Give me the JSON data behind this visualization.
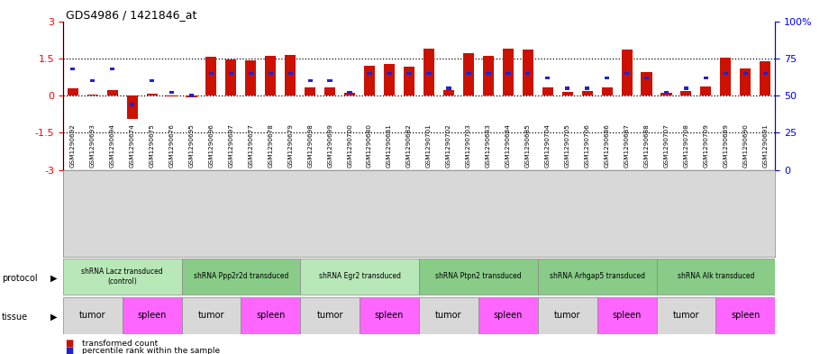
{
  "title": "GDS4986 / 1421846_at",
  "samples": [
    "GSM1290692",
    "GSM1290693",
    "GSM1290694",
    "GSM1290674",
    "GSM1290675",
    "GSM1290676",
    "GSM1290695",
    "GSM1290696",
    "GSM1290697",
    "GSM1290677",
    "GSM1290678",
    "GSM1290679",
    "GSM1290698",
    "GSM1290699",
    "GSM1290700",
    "GSM1290680",
    "GSM1290681",
    "GSM1290682",
    "GSM1290701",
    "GSM1290702",
    "GSM1290703",
    "GSM1290683",
    "GSM1290684",
    "GSM1290685",
    "GSM1290704",
    "GSM1290705",
    "GSM1290706",
    "GSM1290686",
    "GSM1290687",
    "GSM1290688",
    "GSM1290707",
    "GSM1290708",
    "GSM1290709",
    "GSM1290689",
    "GSM1290690",
    "GSM1290691"
  ],
  "red_values": [
    0.28,
    0.04,
    0.22,
    -0.95,
    0.07,
    -0.04,
    -0.07,
    1.55,
    1.45,
    1.42,
    1.62,
    1.65,
    0.32,
    0.32,
    0.1,
    1.22,
    1.28,
    1.15,
    1.88,
    0.22,
    1.72,
    1.62,
    1.9,
    1.85,
    0.32,
    0.15,
    0.2,
    0.32,
    1.85,
    0.95,
    0.1,
    0.2,
    0.35,
    1.52,
    1.1,
    1.38
  ],
  "blue_values": [
    68,
    60,
    68,
    44,
    60,
    52,
    50,
    65,
    65,
    65,
    65,
    65,
    60,
    60,
    52,
    65,
    65,
    65,
    65,
    55,
    65,
    65,
    65,
    65,
    62,
    55,
    55,
    62,
    65,
    62,
    52,
    55,
    62,
    65,
    65,
    65
  ],
  "protocols": [
    {
      "label": "shRNA Lacz transduced\n(control)",
      "start": 0,
      "end": 6,
      "color": "#b8e8b8"
    },
    {
      "label": "shRNA Ppp2r2d transduced",
      "start": 6,
      "end": 12,
      "color": "#88cc88"
    },
    {
      "label": "shRNA Egr2 transduced",
      "start": 12,
      "end": 18,
      "color": "#b8e8b8"
    },
    {
      "label": "shRNA Ptpn2 transduced",
      "start": 18,
      "end": 24,
      "color": "#88cc88"
    },
    {
      "label": "shRNA Arhgap5 transduced",
      "start": 24,
      "end": 30,
      "color": "#88cc88"
    },
    {
      "label": "shRNA Alk transduced",
      "start": 30,
      "end": 36,
      "color": "#88cc88"
    }
  ],
  "tissues": [
    {
      "label": "tumor",
      "start": 0,
      "end": 3,
      "color": "#d8d8d8"
    },
    {
      "label": "spleen",
      "start": 3,
      "end": 6,
      "color": "#ff66ff"
    },
    {
      "label": "tumor",
      "start": 6,
      "end": 9,
      "color": "#d8d8d8"
    },
    {
      "label": "spleen",
      "start": 9,
      "end": 12,
      "color": "#ff66ff"
    },
    {
      "label": "tumor",
      "start": 12,
      "end": 15,
      "color": "#d8d8d8"
    },
    {
      "label": "spleen",
      "start": 15,
      "end": 18,
      "color": "#ff66ff"
    },
    {
      "label": "tumor",
      "start": 18,
      "end": 21,
      "color": "#d8d8d8"
    },
    {
      "label": "spleen",
      "start": 21,
      "end": 24,
      "color": "#ff66ff"
    },
    {
      "label": "tumor",
      "start": 24,
      "end": 27,
      "color": "#d8d8d8"
    },
    {
      "label": "spleen",
      "start": 27,
      "end": 30,
      "color": "#ff66ff"
    },
    {
      "label": "tumor",
      "start": 30,
      "end": 33,
      "color": "#d8d8d8"
    },
    {
      "label": "spleen",
      "start": 33,
      "end": 36,
      "color": "#ff66ff"
    }
  ],
  "ylim": [
    -3,
    3
  ],
  "yticks_left": [
    -3,
    -1.5,
    0,
    1.5,
    3
  ],
  "yticks_right": [
    0,
    25,
    50,
    75,
    100
  ],
  "red_color": "#cc1100",
  "blue_color": "#2222cc",
  "bar_width": 0.55
}
